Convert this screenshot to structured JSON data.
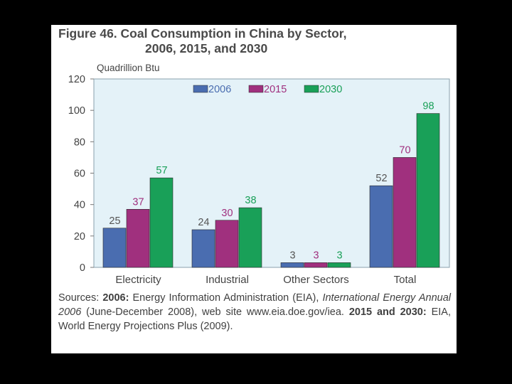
{
  "chart_data": {
    "type": "bar",
    "title_line1": "Figure 46.  Coal Consumption in China by Sector,",
    "title_line2": "2006, 2015, and 2030",
    "ylabel": "Quadrillion Btu",
    "xlabel": "",
    "ylim": [
      0,
      120
    ],
    "yticks": [
      "0",
      "20",
      "40",
      "60",
      "80",
      "100",
      "120"
    ],
    "categories": [
      "Electricity",
      "Industrial",
      "Other Sectors",
      "Total"
    ],
    "series": [
      {
        "name": "2006",
        "values": [
          25,
          24,
          3,
          52
        ],
        "labels": [
          "25",
          "24",
          "3",
          "52"
        ],
        "color": "#4a6db0",
        "label_color": "#555555"
      },
      {
        "name": "2015",
        "values": [
          37,
          30,
          3,
          70
        ],
        "labels": [
          "37",
          "30",
          "3",
          "70"
        ],
        "color": "#a0307e",
        "label_color": "#a0307e"
      },
      {
        "name": "2030",
        "values": [
          57,
          38,
          3,
          98
        ],
        "labels": [
          "57",
          "38",
          "3",
          "98"
        ],
        "color": "#19a058",
        "label_color": "#19a058"
      }
    ],
    "legend": "top-center",
    "grid": false,
    "plot_background": "#e4f2f8"
  },
  "sources": {
    "prefix": "Sources: ",
    "y1": "2006:",
    "t1": " Energy Information Administration (EIA), ",
    "italic": "International Energy Annual 2006",
    "t2": " (June-December 2008), web site www.eia.doe.gov/iea. ",
    "y2": "2015 and 2030:",
    "t3": " EIA, World Energy Projections Plus (2009)."
  }
}
